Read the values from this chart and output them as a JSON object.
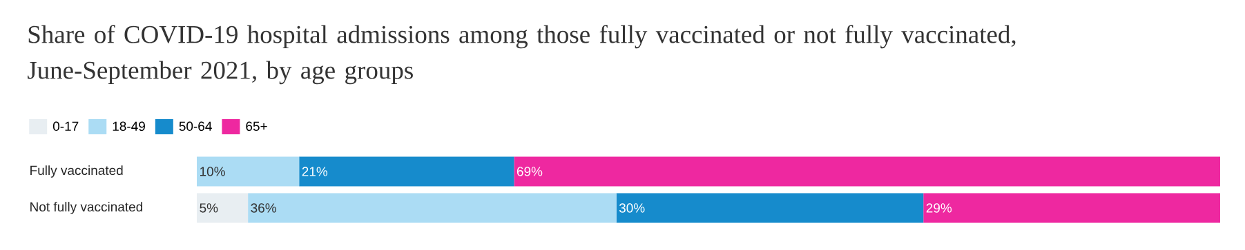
{
  "chart_data": {
    "type": "bar",
    "orientation": "horizontal",
    "stacked": true,
    "title": "Share of COVID-19 hospital admissions among those fully vaccinated or not fully vaccinated, June-September 2021, by age groups",
    "categories": [
      "Fully vaccinated",
      "Not fully vaccinated"
    ],
    "series": [
      {
        "name": "0-17",
        "color": "#e8eef2",
        "values": [
          0,
          5
        ],
        "value_labels": [
          null,
          "5%"
        ]
      },
      {
        "name": "18-49",
        "color": "#abdcf4",
        "values": [
          10,
          36
        ],
        "value_labels": [
          "10%",
          "36%"
        ]
      },
      {
        "name": "50-64",
        "color": "#168bcc",
        "values": [
          21,
          30
        ],
        "value_labels": [
          "21%",
          "30%"
        ]
      },
      {
        "name": "65+",
        "color": "#ee28a0",
        "values": [
          69,
          29
        ],
        "value_labels": [
          "69%",
          "29%"
        ]
      }
    ],
    "legend": "top left"
  }
}
